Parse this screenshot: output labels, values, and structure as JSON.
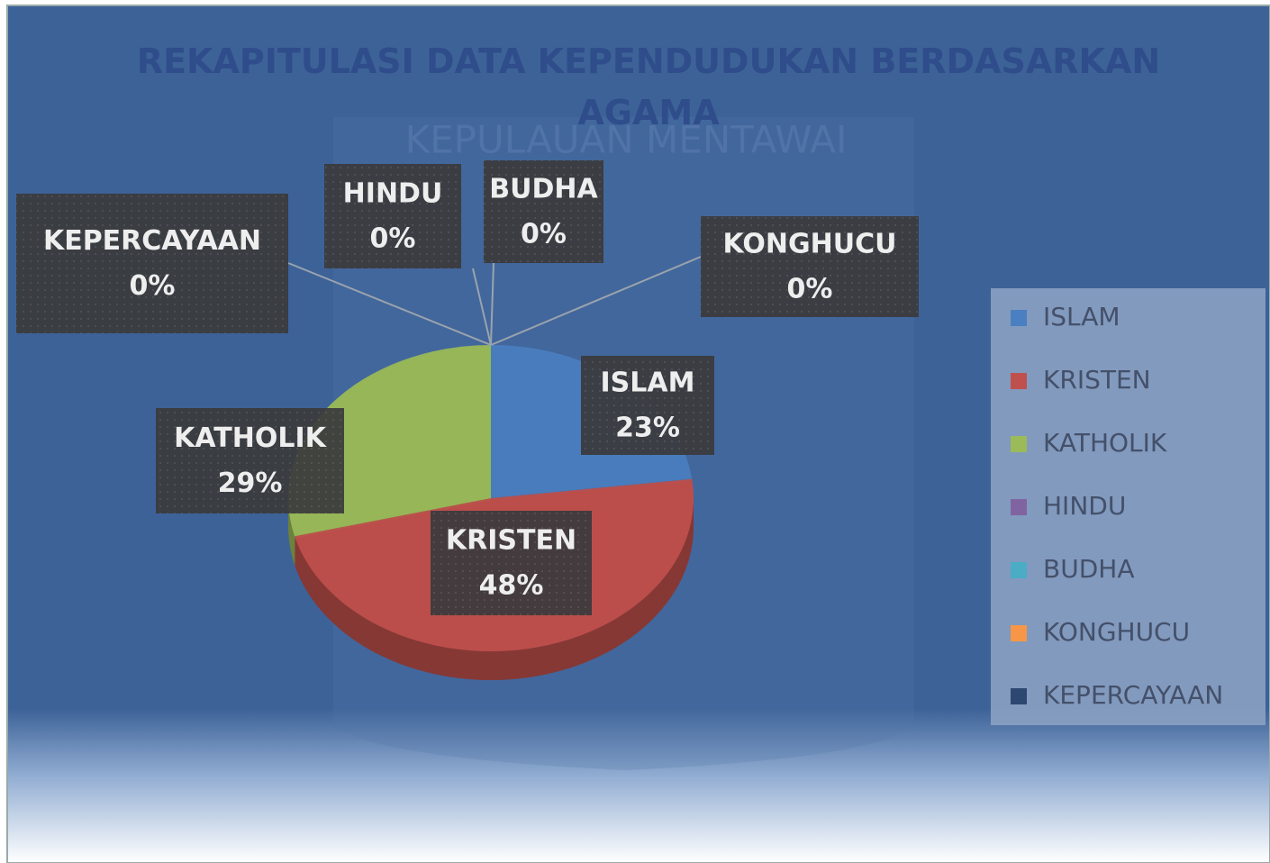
{
  "chart_data": {
    "type": "pie",
    "title": "REKAPITULASI DATA KEPENDUDUKAN BERDASARKAN AGAMA",
    "watermark": "KEPULAUAN MENTAWAI",
    "categories": [
      "ISLAM",
      "KRISTEN",
      "KATHOLIK",
      "HINDU",
      "BUDHA",
      "KONGHUCU",
      "KEPERCAYAAN"
    ],
    "values": [
      23,
      48,
      29,
      0,
      0,
      0,
      0
    ],
    "value_labels": [
      "23%",
      "48%",
      "29%",
      "0%",
      "0%",
      "0%",
      "0%"
    ],
    "colors": [
      "#4a7fc1",
      "#c0504d",
      "#9bbb59",
      "#8064a2",
      "#4bacc6",
      "#f79646",
      "#2c4770"
    ],
    "legend": "right"
  }
}
